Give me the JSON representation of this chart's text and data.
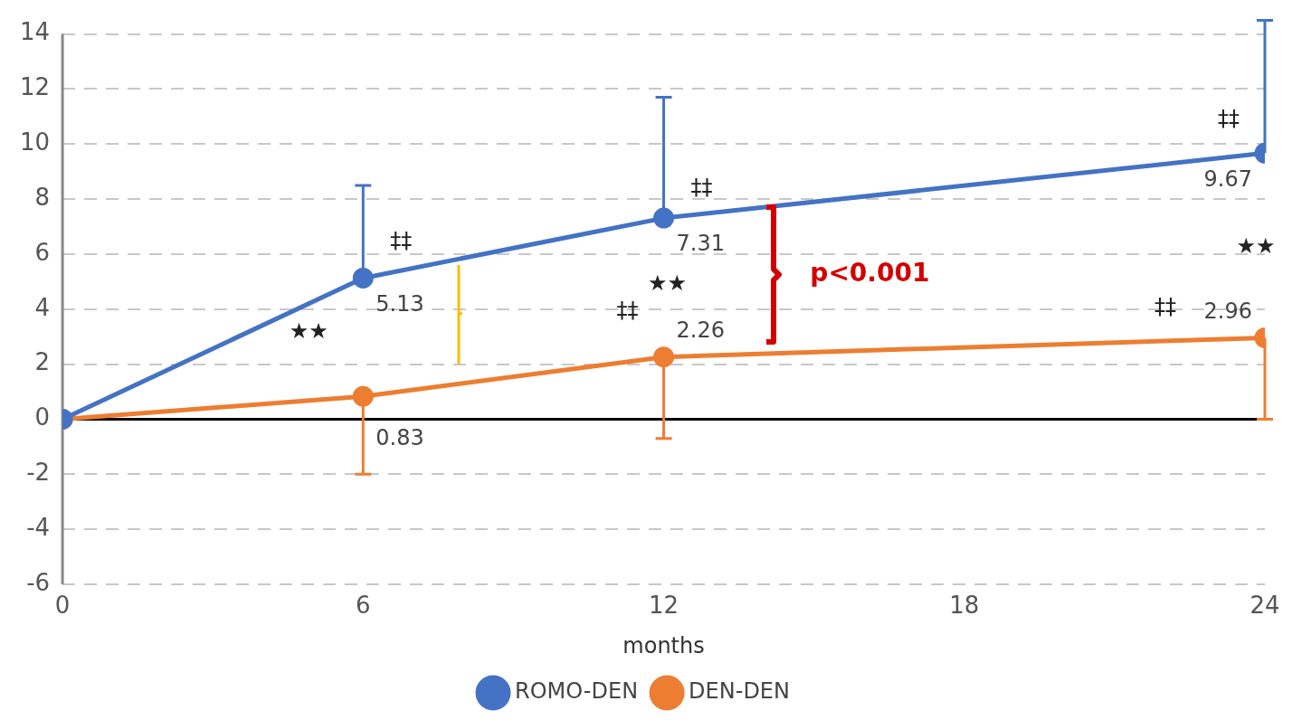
{
  "chart_data": {
    "type": "line",
    "xlabel": "months",
    "x": [
      0,
      6,
      12,
      24
    ],
    "series": [
      {
        "name": "ROMO-DEN",
        "color": "#4472c4",
        "values": [
          0,
          5.13,
          7.31,
          9.67
        ],
        "errors": [
          null,
          [
            5.13,
            8.5
          ],
          [
            7.31,
            11.7
          ],
          [
            9.67,
            14.5
          ]
        ],
        "value_labels": [
          null,
          "5.13",
          "7.31",
          "9.67"
        ]
      },
      {
        "name": "DEN-DEN",
        "color": "#ed7d31",
        "values": [
          0,
          0.83,
          2.26,
          2.96
        ],
        "errors": [
          null,
          [
            -2.0,
            0.83
          ],
          [
            -0.7,
            2.26
          ],
          [
            0,
            2.96
          ]
        ],
        "value_labels": [
          null,
          "0.83",
          "2.26",
          "2.96"
        ]
      }
    ],
    "xlim": [
      0,
      24
    ],
    "xticks": [
      0,
      6,
      12,
      18,
      24
    ],
    "ylim": [
      -6,
      14
    ],
    "yticks": [
      -6,
      -4,
      -2,
      0,
      2,
      4,
      6,
      8,
      10,
      12,
      14
    ],
    "grid": "y",
    "legend": "bottom",
    "marker": "circle",
    "line_style": "solid",
    "ref_lines": [
      {
        "axis": "y",
        "value": 0,
        "color": "#000000"
      }
    ],
    "annotations": [
      {
        "text": "‡‡",
        "x": 6,
        "y": 5.13
      },
      {
        "text": "‡‡",
        "x": 12,
        "y": 7.31
      },
      {
        "text": "‡‡",
        "x": 24,
        "y": 9.67
      },
      {
        "text": "‡‡",
        "x": 12,
        "y": 2.26
      },
      "‡‡",
      {
        "text": "★★",
        "x": 6,
        "y": 0.83
      },
      {
        "text": "★★",
        "x": 12,
        "y": 2.26
      },
      "★★",
      "p<0.001"
    ]
  }
}
